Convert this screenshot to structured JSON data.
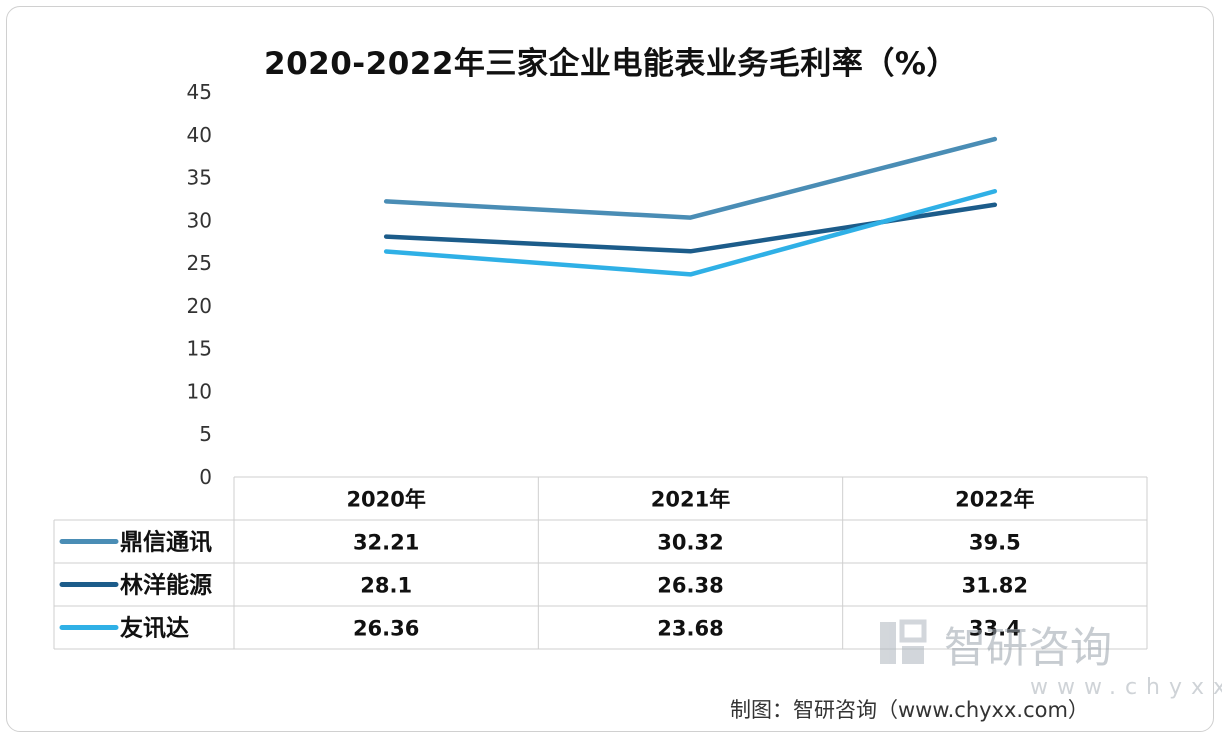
{
  "chart_data": {
    "type": "line",
    "title": "2020-2022年三家企业电能表业务毛利率（%）",
    "categories": [
      "2020年",
      "2021年",
      "2022年"
    ],
    "ylim": [
      0,
      45
    ],
    "yticks": [
      0,
      5,
      10,
      15,
      20,
      25,
      30,
      35,
      40,
      45
    ],
    "legend": "data-table",
    "series": [
      {
        "name": "鼎信通讯",
        "values": [
          32.21,
          30.32,
          39.5
        ],
        "color": "#4a8db5"
      },
      {
        "name": "林洋能源",
        "values": [
          28.1,
          26.38,
          31.82
        ],
        "color": "#1c5c8a"
      },
      {
        "name": "友讯达",
        "values": [
          26.36,
          23.68,
          33.4
        ],
        "color": "#2fb0e6"
      }
    ],
    "table_values": [
      [
        "32.21",
        "30.32",
        "39.5"
      ],
      [
        "28.1",
        "26.38",
        "31.82"
      ],
      [
        "26.36",
        "23.68",
        "33.4"
      ]
    ]
  },
  "watermark": {
    "name": "智研咨询",
    "url": "www.chyxx.com"
  },
  "source_note": "制图：智研咨询（www.chyxx.com）"
}
